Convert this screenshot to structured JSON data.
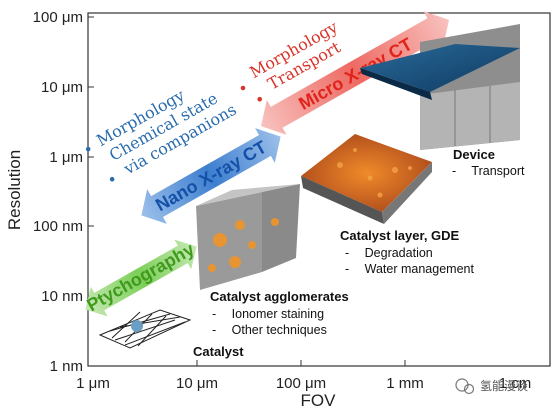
{
  "axes": {
    "y_title": "Resolution",
    "x_title": "FOV",
    "y_ticks": [
      "100 μm",
      "10 μm",
      "1 μm",
      "100 nm",
      "10 nm",
      "1 nm"
    ],
    "x_ticks": [
      "1 μm",
      "10 μm",
      "100 μm",
      "1 mm",
      "1 cm"
    ]
  },
  "techniques": [
    {
      "label": "Ptychography",
      "color": "#6cc04a"
    },
    {
      "label": "Nano X-ray CT",
      "color": "#2e6fc2"
    },
    {
      "label": "Micro X-ray CT",
      "color": "#e8403a"
    }
  ],
  "nano_features": [
    "Morphology",
    "Chemical state",
    "via companions"
  ],
  "micro_features": [
    "Morphology",
    "Transport"
  ],
  "samples": {
    "catalyst": {
      "title": "Catalyst"
    },
    "agglomerates": {
      "title": "Catalyst agglomerates",
      "items": [
        "Ionomer staining",
        "Other techniques"
      ]
    },
    "layer": {
      "title": "Catalyst layer, GDE",
      "items": [
        "Degradation",
        "Water management"
      ]
    },
    "device": {
      "title": "Device",
      "items": [
        "Transport"
      ]
    }
  },
  "watermark": "氢能漫谈"
}
